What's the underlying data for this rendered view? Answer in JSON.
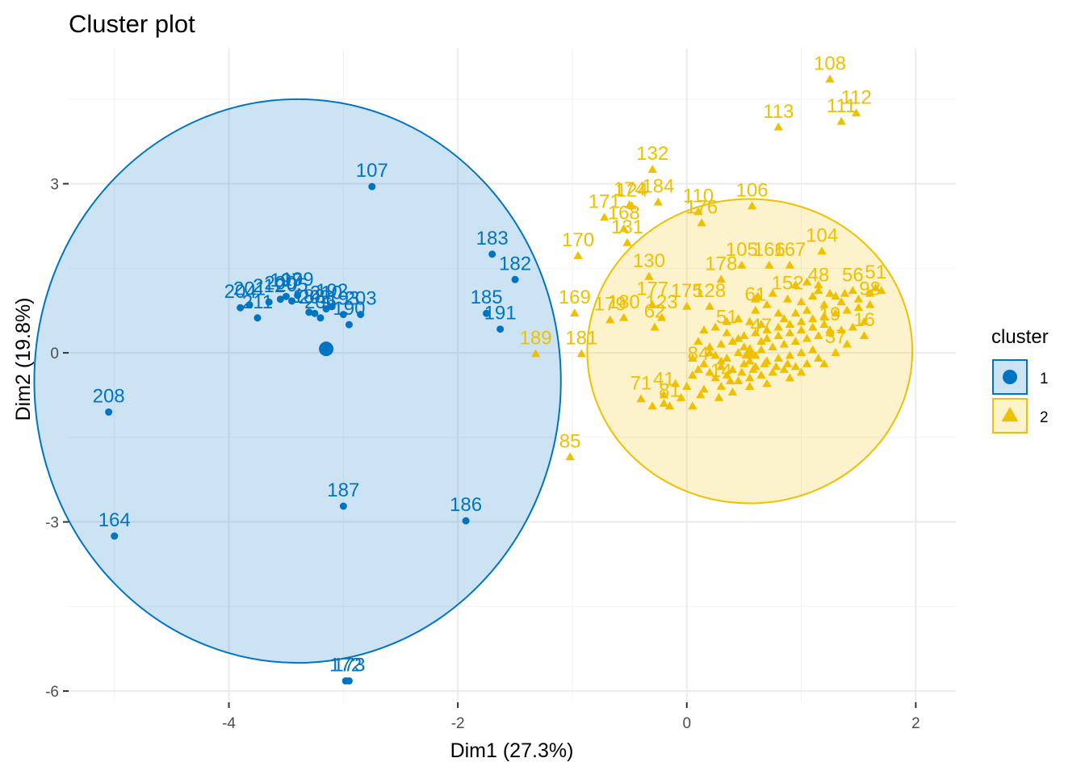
{
  "chart_data": {
    "type": "scatter",
    "title": "Cluster plot",
    "xlabel": "Dim1 (27.3%)",
    "ylabel": "Dim2 (19.8%)",
    "xlim": [
      -5.4,
      2.35
    ],
    "ylim": [
      -6.2,
      5.4
    ],
    "xticks": [
      -4,
      -2,
      0,
      2
    ],
    "yticks": [
      -6,
      -3,
      0,
      3
    ],
    "xtick_labels": [
      "-4",
      "-2",
      "0",
      "2"
    ],
    "ytick_labels": [
      "-6",
      "-3",
      "0",
      "3"
    ],
    "grid": true,
    "legend": {
      "title": "cluster",
      "position": "right",
      "entries": [
        "1",
        "2"
      ]
    },
    "colors": {
      "1": "#0073C2",
      "2": "#EFC000"
    },
    "series": [
      {
        "name": "1",
        "marker": "circle",
        "centroid": [
          -3.15,
          0.07
        ],
        "ellipse": {
          "cx": -3.4,
          "cy": -0.5,
          "rx": 2.3,
          "ry": 5.0
        },
        "points": [
          {
            "x": -2.75,
            "y": 2.95,
            "label": "107"
          },
          {
            "x": -1.7,
            "y": 1.75,
            "label": "183"
          },
          {
            "x": -1.5,
            "y": 1.3,
            "label": "182"
          },
          {
            "x": -1.75,
            "y": 0.7,
            "label": "185"
          },
          {
            "x": -1.63,
            "y": 0.42,
            "label": "191"
          },
          {
            "x": -3.9,
            "y": 0.8,
            "label": "204"
          },
          {
            "x": -3.82,
            "y": 0.85,
            "label": "201"
          },
          {
            "x": -3.75,
            "y": 0.62,
            "label": "211"
          },
          {
            "x": -3.65,
            "y": 0.9,
            "label": "212"
          },
          {
            "x": -3.55,
            "y": 0.95,
            "label": "200"
          },
          {
            "x": -3.5,
            "y": 1.0,
            "label": "197"
          },
          {
            "x": -3.45,
            "y": 0.92,
            "label": "205"
          },
          {
            "x": -3.4,
            "y": 1.02,
            "label": "199"
          },
          {
            "x": -3.25,
            "y": 0.7,
            "label": "202"
          },
          {
            "x": -3.2,
            "y": 0.62,
            "label": "206"
          },
          {
            "x": -3.15,
            "y": 0.78,
            "label": "210"
          },
          {
            "x": -3.1,
            "y": 0.82,
            "label": "192"
          },
          {
            "x": -3.0,
            "y": 0.68,
            "label": "193"
          },
          {
            "x": -2.95,
            "y": 0.5,
            "label": "190"
          },
          {
            "x": -2.85,
            "y": 0.68,
            "label": "203"
          },
          {
            "x": -3.3,
            "y": 0.72,
            "label": "188"
          },
          {
            "x": -5.05,
            "y": -1.05,
            "label": "208"
          },
          {
            "x": -5.0,
            "y": -3.25,
            "label": "164"
          },
          {
            "x": -3.0,
            "y": -2.72,
            "label": "187"
          },
          {
            "x": -1.93,
            "y": -2.98,
            "label": "186"
          },
          {
            "x": -2.98,
            "y": -5.82,
            "label": "172"
          },
          {
            "x": -2.95,
            "y": -5.82,
            "label": "173"
          }
        ]
      },
      {
        "name": "2",
        "marker": "triangle",
        "centroid": [
          0.55,
          0.0
        ],
        "ellipse": {
          "cx": 0.55,
          "cy": 0.03,
          "rx": 1.42,
          "ry": 2.7
        },
        "points": [
          {
            "x": 1.25,
            "y": 4.85,
            "label": "108"
          },
          {
            "x": 1.48,
            "y": 4.25,
            "label": "112"
          },
          {
            "x": 1.35,
            "y": 4.1,
            "label": "111"
          },
          {
            "x": 0.8,
            "y": 4.0,
            "label": "113"
          },
          {
            "x": -0.3,
            "y": 3.25,
            "label": "132"
          },
          {
            "x": -0.5,
            "y": 2.62,
            "label": "174"
          },
          {
            "x": -0.25,
            "y": 2.67,
            "label": "184"
          },
          {
            "x": -0.48,
            "y": 2.6,
            "label": "124"
          },
          {
            "x": -0.72,
            "y": 2.4,
            "label": "171"
          },
          {
            "x": 0.13,
            "y": 2.3,
            "label": "176"
          },
          {
            "x": 0.1,
            "y": 2.5,
            "label": "110"
          },
          {
            "x": 0.57,
            "y": 2.6,
            "label": "106"
          },
          {
            "x": -0.55,
            "y": 2.2,
            "label": "168"
          },
          {
            "x": -0.52,
            "y": 1.95,
            "label": "131"
          },
          {
            "x": -0.95,
            "y": 1.72,
            "label": "170"
          },
          {
            "x": 1.18,
            "y": 1.8,
            "label": "104"
          },
          {
            "x": -0.33,
            "y": 1.35,
            "label": "130"
          },
          {
            "x": 1.65,
            "y": 1.15,
            "label": "51"
          },
          {
            "x": 0.48,
            "y": 1.55,
            "label": "105"
          },
          {
            "x": 0.72,
            "y": 1.55,
            "label": "166"
          },
          {
            "x": 0.9,
            "y": 1.55,
            "label": "167"
          },
          {
            "x": 0.3,
            "y": 1.3,
            "label": "178"
          },
          {
            "x": -0.98,
            "y": 0.7,
            "label": "169"
          },
          {
            "x": -0.67,
            "y": 0.58,
            "label": "179"
          },
          {
            "x": -0.55,
            "y": 0.62,
            "label": "180"
          },
          {
            "x": -0.3,
            "y": 0.85,
            "label": "177"
          },
          {
            "x": -0.22,
            "y": 0.62,
            "label": "123"
          },
          {
            "x": 0.0,
            "y": 0.82,
            "label": "175"
          },
          {
            "x": 0.2,
            "y": 0.82,
            "label": "128"
          },
          {
            "x": -0.28,
            "y": 0.45,
            "label": "62"
          },
          {
            "x": -1.32,
            "y": -0.02,
            "label": "189"
          },
          {
            "x": -0.92,
            "y": -0.02,
            "label": "181"
          },
          {
            "x": -1.02,
            "y": -1.85,
            "label": "85"
          },
          {
            "x": -0.4,
            "y": -0.82,
            "label": "71"
          },
          {
            "x": -0.2,
            "y": -0.75,
            "label": "41"
          },
          {
            "x": -0.15,
            "y": -0.95,
            "label": "81"
          },
          {
            "x": 0.6,
            "y": 0.75,
            "label": "61"
          },
          {
            "x": 0.88,
            "y": 0.95,
            "label": "152"
          },
          {
            "x": 1.15,
            "y": 1.1,
            "label": "48"
          },
          {
            "x": 1.45,
            "y": 1.1,
            "label": "56"
          },
          {
            "x": 1.6,
            "y": 0.85,
            "label": "98"
          },
          {
            "x": 1.55,
            "y": 0.3,
            "label": "16"
          },
          {
            "x": 1.25,
            "y": 0.4,
            "label": "19"
          },
          {
            "x": 1.3,
            "y": 0.0,
            "label": "37"
          },
          {
            "x": 0.35,
            "y": 0.35,
            "label": "51"
          },
          {
            "x": 0.65,
            "y": 0.2,
            "label": "47"
          },
          {
            "x": 0.1,
            "y": -0.3,
            "label": "84"
          },
          {
            "x": 0.3,
            "y": -0.6,
            "label": "14"
          }
        ],
        "extra_points": [
          [
            0.2,
            0.1
          ],
          [
            0.25,
            -0.05
          ],
          [
            0.3,
            0.15
          ],
          [
            0.35,
            -0.1
          ],
          [
            0.4,
            0.2
          ],
          [
            0.45,
            0.0
          ],
          [
            0.5,
            0.3
          ],
          [
            0.55,
            -0.15
          ],
          [
            0.6,
            0.35
          ],
          [
            0.65,
            0.05
          ],
          [
            0.7,
            0.4
          ],
          [
            0.75,
            0.1
          ],
          [
            0.8,
            0.45
          ],
          [
            0.85,
            0.15
          ],
          [
            0.9,
            0.5
          ],
          [
            0.95,
            0.2
          ],
          [
            1.0,
            0.55
          ],
          [
            1.05,
            0.25
          ],
          [
            1.1,
            0.6
          ],
          [
            1.15,
            0.3
          ],
          [
            1.2,
            0.65
          ],
          [
            1.25,
            0.35
          ],
          [
            1.3,
            0.7
          ],
          [
            1.35,
            0.4
          ],
          [
            1.4,
            0.75
          ],
          [
            1.45,
            0.45
          ],
          [
            1.5,
            0.8
          ],
          [
            0.15,
            -0.2
          ],
          [
            0.2,
            -0.35
          ],
          [
            0.25,
            -0.45
          ],
          [
            0.3,
            -0.25
          ],
          [
            0.35,
            -0.4
          ],
          [
            0.4,
            -0.3
          ],
          [
            0.45,
            -0.5
          ],
          [
            0.5,
            -0.2
          ],
          [
            0.55,
            -0.45
          ],
          [
            0.6,
            -0.25
          ],
          [
            0.65,
            -0.4
          ],
          [
            0.7,
            -0.15
          ],
          [
            0.75,
            -0.35
          ],
          [
            0.8,
            -0.1
          ],
          [
            0.85,
            -0.3
          ],
          [
            0.9,
            -0.05
          ],
          [
            0.95,
            -0.25
          ],
          [
            1.0,
            0.0
          ],
          [
            1.05,
            -0.2
          ],
          [
            1.1,
            0.05
          ],
          [
            1.15,
            -0.1
          ],
          [
            0.1,
            0.2
          ],
          [
            0.05,
            -0.1
          ],
          [
            0.0,
            -0.6
          ],
          [
            -0.05,
            -0.8
          ],
          [
            0.05,
            -0.95
          ],
          [
            0.15,
            -0.65
          ],
          [
            0.4,
            -0.7
          ],
          [
            0.55,
            -0.6
          ],
          [
            0.7,
            -0.55
          ],
          [
            0.9,
            -0.45
          ],
          [
            1.0,
            -0.35
          ],
          [
            1.2,
            -0.2
          ],
          [
            1.4,
            0.15
          ],
          [
            1.55,
            0.55
          ],
          [
            1.6,
            1.05
          ],
          [
            1.7,
            1.1
          ],
          [
            0.6,
            0.95
          ],
          [
            0.7,
            0.85
          ],
          [
            0.8,
            0.7
          ],
          [
            1.0,
            0.9
          ],
          [
            1.1,
            1.0
          ],
          [
            1.2,
            0.85
          ],
          [
            1.3,
            1.0
          ],
          [
            0.35,
            0.55
          ],
          [
            0.45,
            0.6
          ],
          [
            0.55,
            0.55
          ],
          [
            0.25,
            0.45
          ],
          [
            0.15,
            0.4
          ],
          [
            0.2,
            0.0
          ],
          [
            0.3,
            -0.15
          ],
          [
            0.5,
            0.1
          ],
          [
            0.6,
            -0.05
          ],
          [
            0.7,
            0.25
          ],
          [
            0.8,
            0.3
          ],
          [
            0.9,
            0.35
          ],
          [
            1.0,
            0.4
          ],
          [
            1.1,
            0.45
          ],
          [
            1.2,
            0.5
          ],
          [
            0.45,
            0.25
          ],
          [
            0.65,
            0.5
          ],
          [
            0.85,
            0.6
          ],
          [
            0.95,
            0.7
          ],
          [
            1.05,
            0.75
          ],
          [
            1.35,
            0.9
          ],
          [
            -0.1,
            -0.55
          ],
          [
            -0.2,
            -0.9
          ],
          [
            -0.3,
            -0.95
          ],
          [
            0.05,
            -0.4
          ],
          [
            0.12,
            -0.75
          ],
          [
            0.28,
            -0.8
          ],
          [
            0.38,
            -0.5
          ],
          [
            0.48,
            -0.35
          ],
          [
            0.58,
            -0.3
          ],
          [
            0.68,
            -0.2
          ],
          [
            0.78,
            -0.25
          ],
          [
            0.88,
            -0.2
          ],
          [
            0.62,
            1.0
          ],
          [
            0.75,
            1.05
          ],
          [
            0.95,
            1.2
          ],
          [
            1.05,
            1.25
          ],
          [
            1.15,
            1.2
          ],
          [
            1.25,
            1.05
          ],
          [
            1.38,
            1.05
          ],
          [
            1.5,
            0.95
          ]
        ]
      }
    ]
  }
}
